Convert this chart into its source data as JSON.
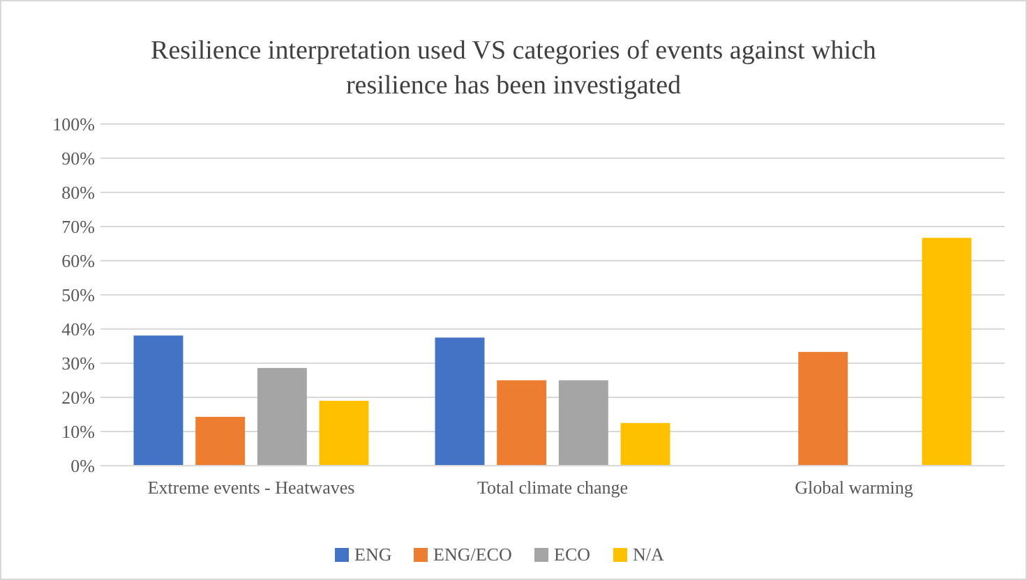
{
  "chart_data": {
    "type": "bar",
    "title": "Resilience interpretation used VS categories of events against which resilience has been investigated",
    "categories": [
      "Extreme events - Heatwaves",
      "Total climate change",
      "Global warming"
    ],
    "series": [
      {
        "name": "ENG",
        "color": "#4472c4",
        "values": [
          38.1,
          37.5,
          0
        ]
      },
      {
        "name": "ENG/ECO",
        "color": "#ed7d31",
        "values": [
          14.3,
          25,
          33.3
        ]
      },
      {
        "name": "ECO",
        "color": "#a5a5a5",
        "values": [
          28.6,
          25,
          0
        ]
      },
      {
        "name": "N/A",
        "color": "#ffc000",
        "values": [
          19,
          12.5,
          66.7
        ]
      }
    ],
    "ylim": [
      0,
      100
    ],
    "yticks": [
      {
        "value": 0,
        "label": "0%"
      },
      {
        "value": 10,
        "label": "10%"
      },
      {
        "value": 20,
        "label": "20%"
      },
      {
        "value": 30,
        "label": "30%"
      },
      {
        "value": 40,
        "label": "40%"
      },
      {
        "value": 50,
        "label": "50%"
      },
      {
        "value": 60,
        "label": "60%"
      },
      {
        "value": 70,
        "label": "70%"
      },
      {
        "value": 80,
        "label": "80%"
      },
      {
        "value": 90,
        "label": "90%"
      },
      {
        "value": 100,
        "label": "100%"
      }
    ],
    "grid": "y",
    "legend": "bottom"
  }
}
